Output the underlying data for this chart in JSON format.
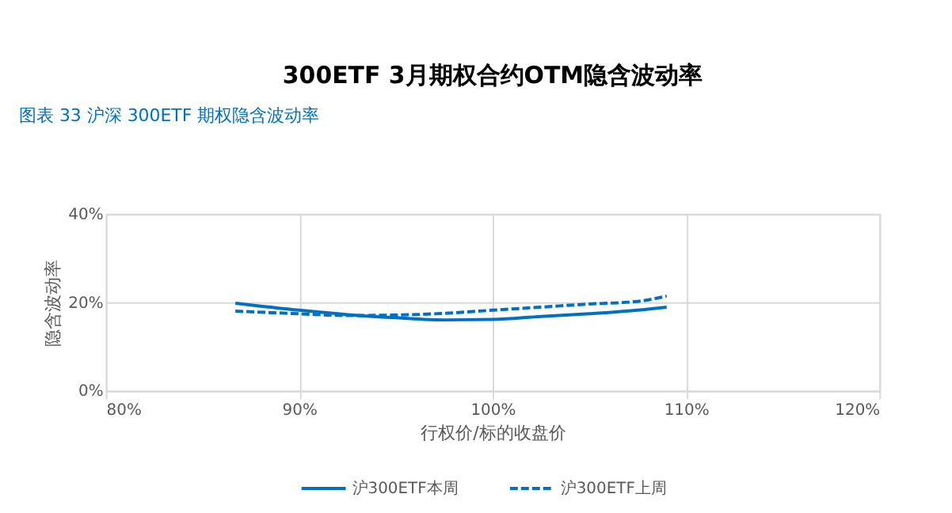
{
  "chart_data": {
    "type": "line",
    "title": "300ETF 3月期权合约OTM隐含波动率",
    "annotations": [
      "图表 33 沪深 300ETF 期权隐含波动率"
    ],
    "xlabel": "行权价/标的收盘价",
    "ylabel": "隐含波动率",
    "series": [
      {
        "name": "沪300ETF本周",
        "color": "#0070c0",
        "line_style": "solid",
        "x": [
          86.7,
          90,
          92.5,
          95,
          97.5,
          100,
          102.5,
          105,
          107.5,
          109
        ],
        "values": [
          19.8,
          18.2,
          17.2,
          16.5,
          16.0,
          16.1,
          16.8,
          17.4,
          18.2,
          18.9
        ]
      },
      {
        "name": "沪300ETF上周",
        "color": "#0070c0",
        "line_style": "dashed",
        "x": [
          86.7,
          90,
          92.5,
          95,
          97.5,
          100,
          102.5,
          105,
          107.5,
          109
        ],
        "values": [
          18.0,
          17.4,
          17.0,
          17.1,
          17.5,
          18.2,
          18.9,
          19.6,
          20.2,
          21.4
        ]
      }
    ],
    "xlim": [
      80,
      120
    ],
    "xticks": [
      {
        "value": 80,
        "label": "80%"
      },
      {
        "value": 90,
        "label": "90%"
      },
      {
        "value": 100,
        "label": "100%"
      },
      {
        "value": 110,
        "label": "110%"
      },
      {
        "value": 120,
        "label": "120%"
      }
    ],
    "ylim": [
      0,
      40
    ],
    "yticks": [
      {
        "value": 0,
        "label": "0%"
      },
      {
        "value": 20,
        "label": "20%"
      },
      {
        "value": 40,
        "label": "40%"
      }
    ],
    "grid": true,
    "legend": "bottom",
    "marker": "none"
  }
}
